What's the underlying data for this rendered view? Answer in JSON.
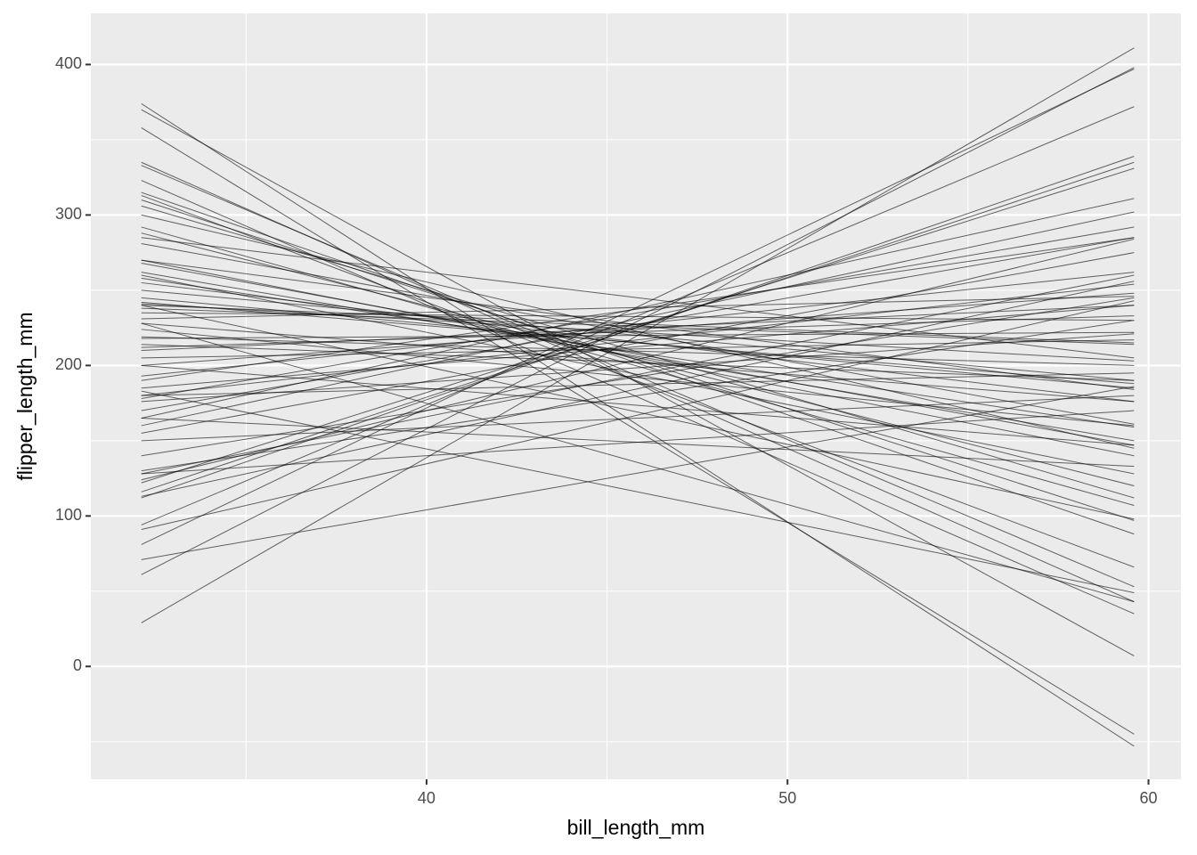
{
  "chart_data": {
    "type": "line",
    "x_label": "bill_length_mm",
    "y_label": "flipper_length_mm",
    "x": [
      32.1,
      59.6
    ],
    "xlim": [
      30.7,
      60.9
    ],
    "ylim": [
      -75,
      434
    ],
    "xticks": [
      40,
      50,
      60
    ],
    "yticks": [
      0,
      100,
      200,
      300,
      400
    ],
    "x_minor_ticks": [
      35,
      45,
      55
    ],
    "y_minor_ticks": [
      -50,
      50,
      150,
      250,
      350
    ],
    "grid": true,
    "color": "#000000",
    "series": [
      {
        "values": [
          29,
          411
        ]
      },
      {
        "values": [
          374,
          -53
        ]
      },
      {
        "values": [
          358,
          -45
        ]
      },
      {
        "values": [
          370,
          7
        ]
      },
      {
        "values": [
          61,
          398
        ]
      },
      {
        "values": [
          81,
          397
        ]
      },
      {
        "values": [
          94,
          372
        ]
      },
      {
        "values": [
          112,
          339
        ]
      },
      {
        "values": [
          116,
          335
        ]
      },
      {
        "values": [
          122,
          331
        ]
      },
      {
        "values": [
          335,
          43
        ]
      },
      {
        "values": [
          333,
          53
        ]
      },
      {
        "values": [
          323,
          35
        ]
      },
      {
        "values": [
          313,
          66
        ]
      },
      {
        "values": [
          315,
          88
        ]
      },
      {
        "values": [
          310,
          97
        ]
      },
      {
        "values": [
          306,
          112
        ]
      },
      {
        "values": [
          292,
          107
        ]
      },
      {
        "values": [
          288,
          120
        ]
      },
      {
        "values": [
          281,
          161
        ]
      },
      {
        "values": [
          270,
          140
        ]
      },
      {
        "values": [
          268,
          147
        ]
      },
      {
        "values": [
          262,
          150
        ]
      },
      {
        "values": [
          258,
          159
        ]
      },
      {
        "values": [
          255,
          176
        ]
      },
      {
        "values": [
          250,
          190
        ]
      },
      {
        "values": [
          245,
          185
        ]
      },
      {
        "values": [
          241,
          203
        ]
      },
      {
        "values": [
          238,
          214
        ]
      },
      {
        "values": [
          235,
          230
        ]
      },
      {
        "values": [
          231,
          246
        ]
      },
      {
        "values": [
          228,
          176
        ]
      },
      {
        "values": [
          224,
          160
        ]
      },
      {
        "values": [
          219,
          200
        ]
      },
      {
        "values": [
          212,
          233
        ]
      },
      {
        "values": [
          210,
          240
        ]
      },
      {
        "values": [
          205,
          217
        ]
      },
      {
        "values": [
          200,
          248
        ]
      },
      {
        "values": [
          193,
          262
        ]
      },
      {
        "values": [
          190,
          285
        ]
      },
      {
        "values": [
          185,
          240
        ]
      },
      {
        "values": [
          180,
          254
        ]
      },
      {
        "values": [
          178,
          292
        ]
      },
      {
        "values": [
          176,
          221
        ]
      },
      {
        "values": [
          170,
          285
        ]
      },
      {
        "values": [
          165,
          311
        ]
      },
      {
        "values": [
          160,
          302
        ]
      },
      {
        "values": [
          155,
          275
        ]
      },
      {
        "values": [
          140,
          245
        ]
      },
      {
        "values": [
          130,
          230
        ]
      },
      {
        "values": [
          128,
          260
        ]
      },
      {
        "values": [
          124,
          284
        ]
      },
      {
        "values": [
          113,
          256
        ]
      },
      {
        "values": [
          91,
          243
        ]
      },
      {
        "values": [
          71,
          186
        ]
      },
      {
        "values": [
          165,
          133
        ]
      },
      {
        "values": [
          183,
          49
        ]
      },
      {
        "values": [
          228,
          43
        ]
      },
      {
        "values": [
          240,
          98
        ]
      },
      {
        "values": [
          200,
          147
        ]
      },
      {
        "values": [
          214,
          190
        ]
      },
      {
        "values": [
          260,
          128
        ]
      },
      {
        "values": [
          270,
          184
        ]
      },
      {
        "values": [
          180,
          195
        ]
      },
      {
        "values": [
          240,
          215
        ]
      },
      {
        "values": [
          150,
          180
        ]
      },
      {
        "values": [
          128,
          170
        ]
      },
      {
        "values": [
          300,
          145
        ]
      },
      {
        "values": [
          285,
          205
        ]
      },
      {
        "values": [
          218,
          222
        ]
      },
      {
        "values": [
          242,
          188
        ]
      }
    ]
  }
}
